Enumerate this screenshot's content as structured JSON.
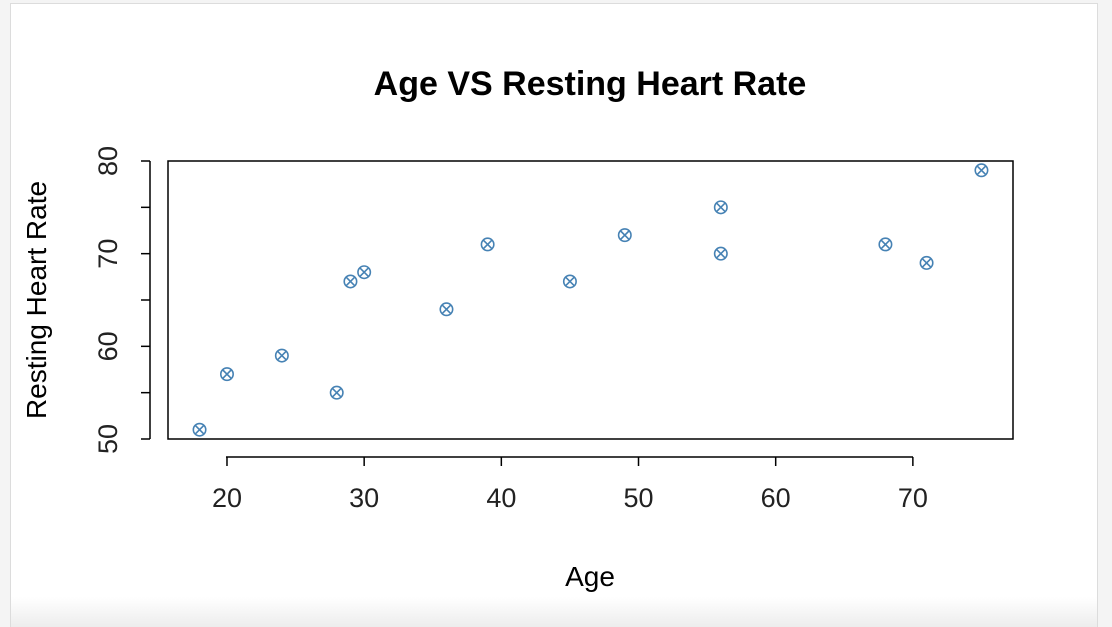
{
  "chart_data": {
    "type": "scatter",
    "title": "Age VS Resting Heart Rate",
    "xlabel": "Age",
    "ylabel": "Resting Heart Rate",
    "xlim": [
      15.7,
      77.3
    ],
    "ylim": [
      50,
      80
    ],
    "xticks": [
      20,
      30,
      40,
      50,
      60,
      70
    ],
    "yticks": [
      50,
      60,
      70,
      80
    ],
    "yminor": [
      55,
      65,
      75
    ],
    "marker": "circle-x",
    "point_color": "#4682b4",
    "grid": false,
    "points": [
      {
        "x": 18,
        "y": 51
      },
      {
        "x": 20,
        "y": 57
      },
      {
        "x": 24,
        "y": 59
      },
      {
        "x": 28,
        "y": 55
      },
      {
        "x": 29,
        "y": 67
      },
      {
        "x": 30,
        "y": 68
      },
      {
        "x": 36,
        "y": 64
      },
      {
        "x": 39,
        "y": 71
      },
      {
        "x": 45,
        "y": 67
      },
      {
        "x": 49,
        "y": 72
      },
      {
        "x": 56,
        "y": 75
      },
      {
        "x": 56,
        "y": 70
      },
      {
        "x": 68,
        "y": 71
      },
      {
        "x": 71,
        "y": 69
      },
      {
        "x": 75,
        "y": 79
      }
    ]
  }
}
